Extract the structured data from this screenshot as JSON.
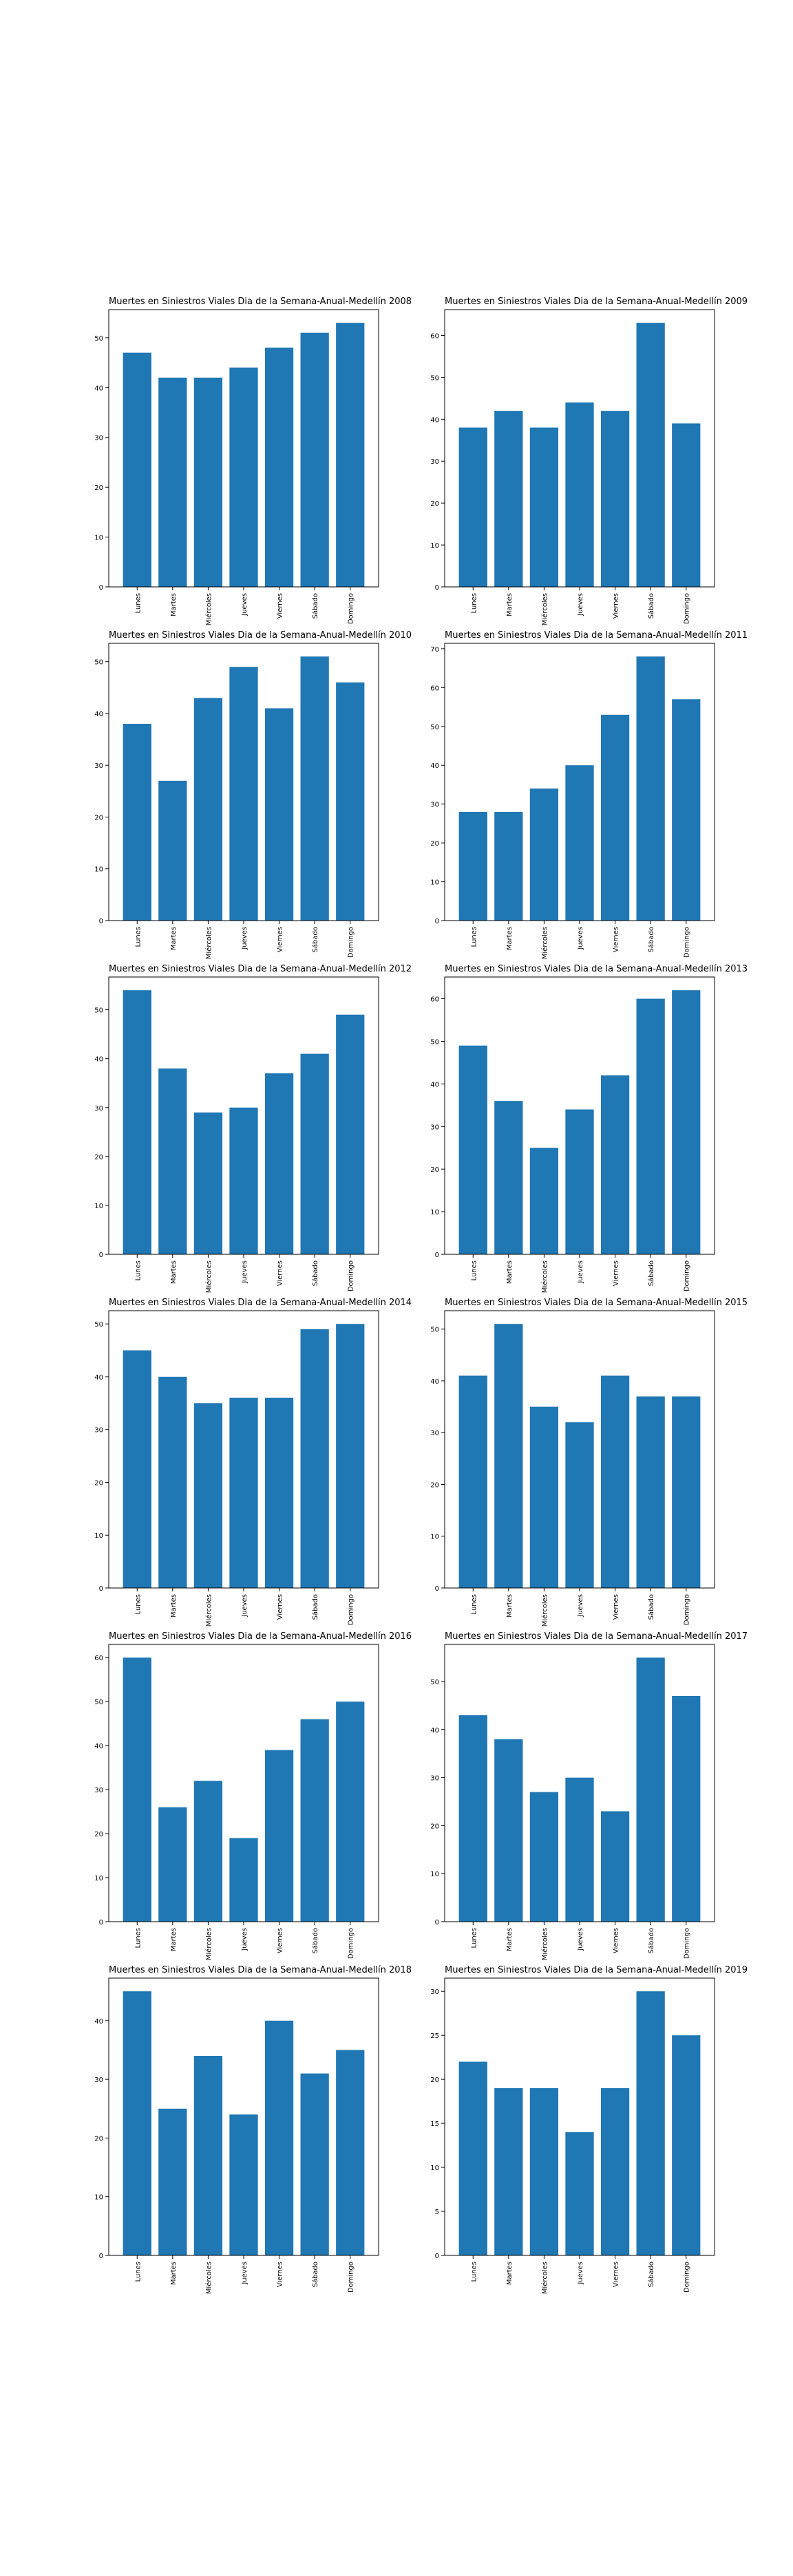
{
  "figure": {
    "bar_color": "#1f77b4",
    "axis_color": "#000000"
  },
  "chart_data": [
    {
      "type": "bar",
      "title": "Muertes en Siniestros Viales Dia de la Semana-Anual-Medellín 2008",
      "categories": [
        "Lunes",
        "Martes",
        "Miércoles",
        "Jueves",
        "Viernes",
        "Sábado",
        "Domingo"
      ],
      "values": [
        47,
        42,
        42,
        44,
        48,
        51,
        53
      ],
      "ylim": [
        0,
        55.65
      ],
      "yticks": [
        0,
        10,
        20,
        30,
        40,
        50
      ],
      "grid": false
    },
    {
      "type": "bar",
      "title": "Muertes en Siniestros Viales Dia de la Semana-Anual-Medellín 2009",
      "categories": [
        "Lunes",
        "Martes",
        "Miércoles",
        "Jueves",
        "Viernes",
        "Sábado",
        "Domingo"
      ],
      "values": [
        38,
        42,
        38,
        44,
        42,
        63,
        39
      ],
      "ylim": [
        0,
        66.15
      ],
      "yticks": [
        0,
        10,
        20,
        30,
        40,
        50,
        60
      ],
      "grid": false
    },
    {
      "type": "bar",
      "title": "Muertes en Siniestros Viales Dia de la Semana-Anual-Medellín 2010",
      "categories": [
        "Lunes",
        "Martes",
        "Miércoles",
        "Jueves",
        "Viernes",
        "Sábado",
        "Domingo"
      ],
      "values": [
        38,
        27,
        43,
        49,
        41,
        51,
        46
      ],
      "ylim": [
        0,
        53.55
      ],
      "yticks": [
        0,
        10,
        20,
        30,
        40,
        50
      ],
      "grid": false
    },
    {
      "type": "bar",
      "title": "Muertes en Siniestros Viales Dia de la Semana-Anual-Medellín 2011",
      "categories": [
        "Lunes",
        "Martes",
        "Miércoles",
        "Jueves",
        "Viernes",
        "Sábado",
        "Domingo"
      ],
      "values": [
        28,
        28,
        34,
        40,
        53,
        68,
        57
      ],
      "ylim": [
        0,
        71.4
      ],
      "yticks": [
        0,
        10,
        20,
        30,
        40,
        50,
        60,
        70
      ],
      "grid": false
    },
    {
      "type": "bar",
      "title": "Muertes en Siniestros Viales Dia de la Semana-Anual-Medellín 2012",
      "categories": [
        "Lunes",
        "Martes",
        "Miércoles",
        "Jueves",
        "Viernes",
        "Sábado",
        "Domingo"
      ],
      "values": [
        54,
        38,
        29,
        30,
        37,
        41,
        49
      ],
      "ylim": [
        0,
        56.7
      ],
      "yticks": [
        0,
        10,
        20,
        30,
        40,
        50
      ],
      "grid": false
    },
    {
      "type": "bar",
      "title": "Muertes en Siniestros Viales Dia de la Semana-Anual-Medellín 2013",
      "categories": [
        "Lunes",
        "Martes",
        "Miércoles",
        "Jueves",
        "Viernes",
        "Sábado",
        "Domingo"
      ],
      "values": [
        49,
        36,
        25,
        34,
        42,
        60,
        62
      ],
      "ylim": [
        0,
        65.1
      ],
      "yticks": [
        0,
        10,
        20,
        30,
        40,
        50,
        60
      ],
      "grid": false
    },
    {
      "type": "bar",
      "title": "Muertes en Siniestros Viales Dia de la Semana-Anual-Medellín 2014",
      "categories": [
        "Lunes",
        "Martes",
        "Miércoles",
        "Jueves",
        "Viernes",
        "Sábado",
        "Domingo"
      ],
      "values": [
        45,
        40,
        35,
        36,
        36,
        49,
        50
      ],
      "ylim": [
        0,
        52.5
      ],
      "yticks": [
        0,
        10,
        20,
        30,
        40,
        50
      ],
      "grid": false
    },
    {
      "type": "bar",
      "title": "Muertes en Siniestros Viales Dia de la Semana-Anual-Medellín 2015",
      "categories": [
        "Lunes",
        "Martes",
        "Miércoles",
        "Jueves",
        "Viernes",
        "Sábado",
        "Domingo"
      ],
      "values": [
        41,
        51,
        35,
        32,
        41,
        37,
        37
      ],
      "ylim": [
        0,
        53.55
      ],
      "yticks": [
        0,
        10,
        20,
        30,
        40,
        50
      ],
      "grid": false
    },
    {
      "type": "bar",
      "title": "Muertes en Siniestros Viales Dia de la Semana-Anual-Medellín 2016",
      "categories": [
        "Lunes",
        "Martes",
        "Miércoles",
        "Jueves",
        "Viernes",
        "Sábado",
        "Domingo"
      ],
      "values": [
        60,
        26,
        32,
        19,
        39,
        46,
        50
      ],
      "ylim": [
        0,
        63
      ],
      "yticks": [
        0,
        10,
        20,
        30,
        40,
        50,
        60
      ],
      "grid": false
    },
    {
      "type": "bar",
      "title": "Muertes en Siniestros Viales Dia de la Semana-Anual-Medellín 2017",
      "categories": [
        "Lunes",
        "Martes",
        "Miércoles",
        "Jueves",
        "Viernes",
        "Sábado",
        "Domingo"
      ],
      "values": [
        43,
        38,
        27,
        30,
        23,
        55,
        47
      ],
      "ylim": [
        0,
        57.75
      ],
      "yticks": [
        0,
        10,
        20,
        30,
        40,
        50
      ],
      "grid": false
    },
    {
      "type": "bar",
      "title": "Muertes en Siniestros Viales Dia de la Semana-Anual-Medellín 2018",
      "categories": [
        "Lunes",
        "Martes",
        "Miércoles",
        "Jueves",
        "Viernes",
        "Sábado",
        "Domingo"
      ],
      "values": [
        45,
        25,
        34,
        24,
        40,
        31,
        35
      ],
      "ylim": [
        0,
        47.25
      ],
      "yticks": [
        0,
        10,
        20,
        30,
        40
      ],
      "grid": false
    },
    {
      "type": "bar",
      "title": "Muertes en Siniestros Viales Dia de la Semana-Anual-Medellín 2019",
      "categories": [
        "Lunes",
        "Martes",
        "Miércoles",
        "Jueves",
        "Viernes",
        "Sábado",
        "Domingo"
      ],
      "values": [
        22,
        19,
        19,
        14,
        19,
        30,
        25
      ],
      "ylim": [
        0,
        31.5
      ],
      "yticks": [
        0,
        5,
        10,
        15,
        20,
        25,
        30
      ],
      "grid": false
    }
  ]
}
